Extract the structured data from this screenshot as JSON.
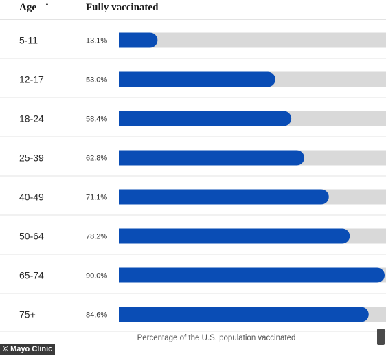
{
  "header": {
    "age_label": "Age",
    "sort_icon": "▲",
    "vaccinated_label": "Fully vaccinated"
  },
  "chart_data": {
    "type": "bar",
    "orientation": "horizontal",
    "categories": [
      "5-11",
      "12-17",
      "18-24",
      "25-39",
      "40-49",
      "50-64",
      "65-74",
      "75+"
    ],
    "values": [
      13.1,
      53.0,
      58.4,
      62.8,
      71.1,
      78.2,
      90.0,
      84.6
    ],
    "value_labels": [
      "13.1%",
      "53.0%",
      "58.4%",
      "62.8%",
      "71.1%",
      "78.2%",
      "90.0%",
      "84.6%"
    ],
    "xlim": [
      0,
      100
    ],
    "xlabel": "Percentage of the U.S. population vaccinated",
    "colors": {
      "bar": "#0a4db5",
      "track": "#d9d9d9",
      "divider": "#e3e3e3"
    }
  },
  "footer": {
    "credit": "© Mayo Clinic"
  }
}
